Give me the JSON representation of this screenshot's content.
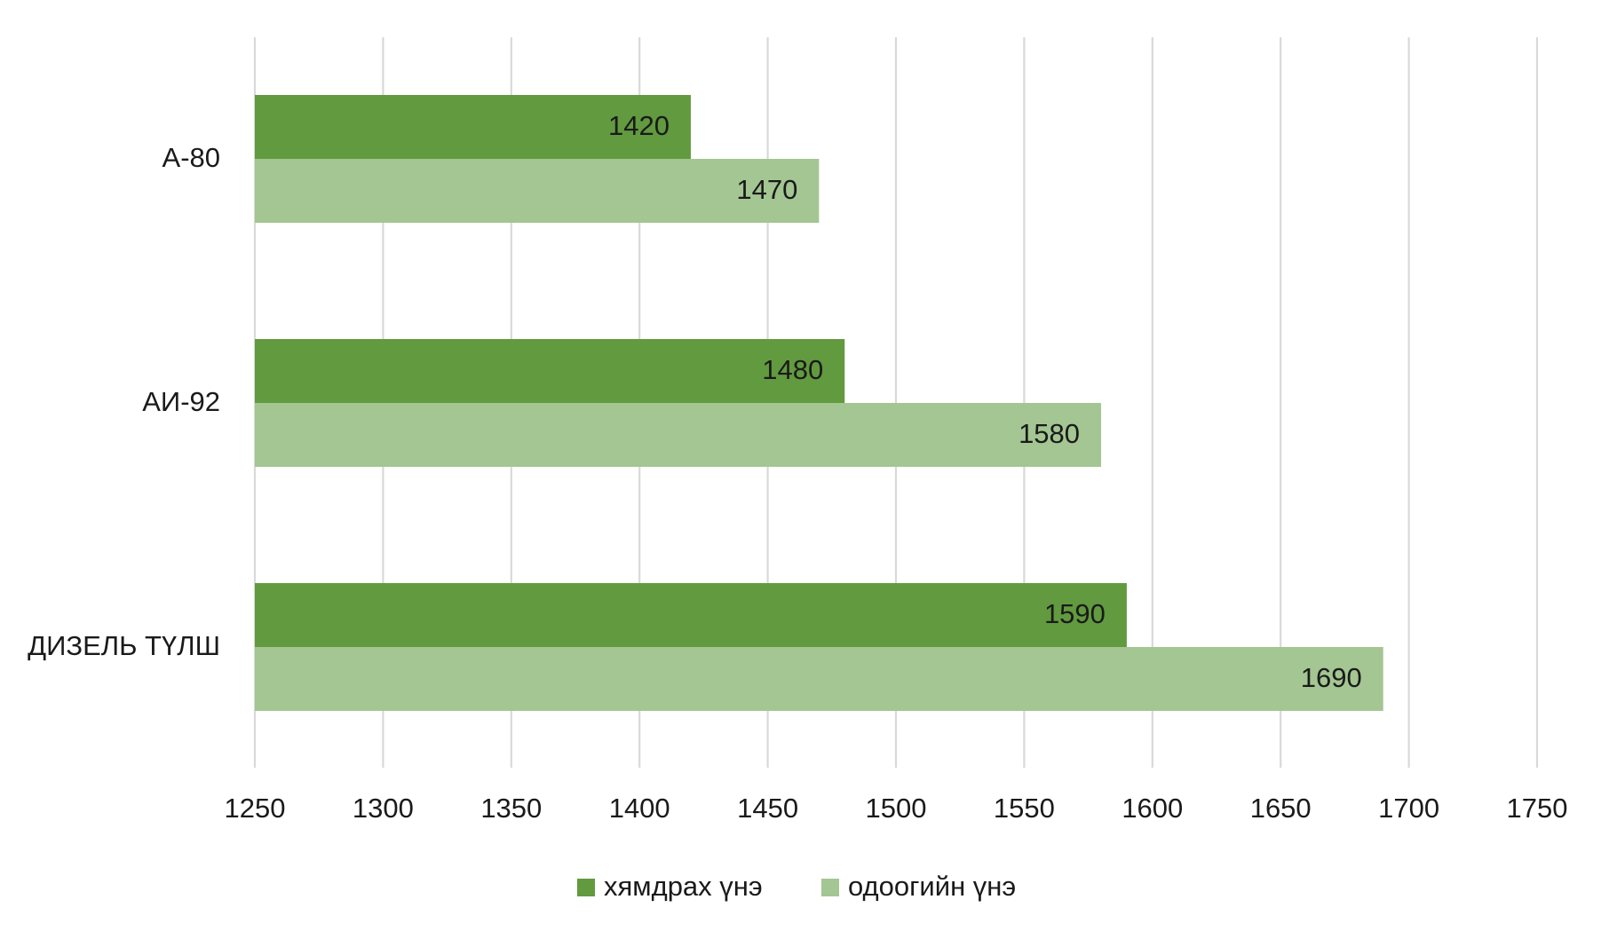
{
  "chart_data": {
    "type": "bar",
    "orientation": "horizontal",
    "title": "",
    "xlabel": "",
    "ylabel": "",
    "categories": [
      "A-80",
      "АИ-92",
      "ДИЗЕЛЬ ТҮЛШ"
    ],
    "series": [
      {
        "name": "хямдрах үнэ",
        "color": "#629a3f",
        "values": [
          1420,
          1480,
          1590
        ]
      },
      {
        "name": "одоогийн үнэ",
        "color": "#a3c692",
        "values": [
          1470,
          1580,
          1690
        ]
      }
    ],
    "xlim": [
      1250,
      1750
    ],
    "x_ticks": [
      1250,
      1300,
      1350,
      1400,
      1450,
      1500,
      1550,
      1600,
      1650,
      1700,
      1750
    ],
    "x_tick_labels": [
      "1250",
      "1300",
      "1350",
      "1400",
      "1450",
      "1500",
      "1550",
      "1600",
      "1650",
      "1700",
      "1750"
    ],
    "data_labels": true,
    "grid": "vertical",
    "grid_color": "#d9d9d9",
    "legend_position": "bottom-center"
  }
}
